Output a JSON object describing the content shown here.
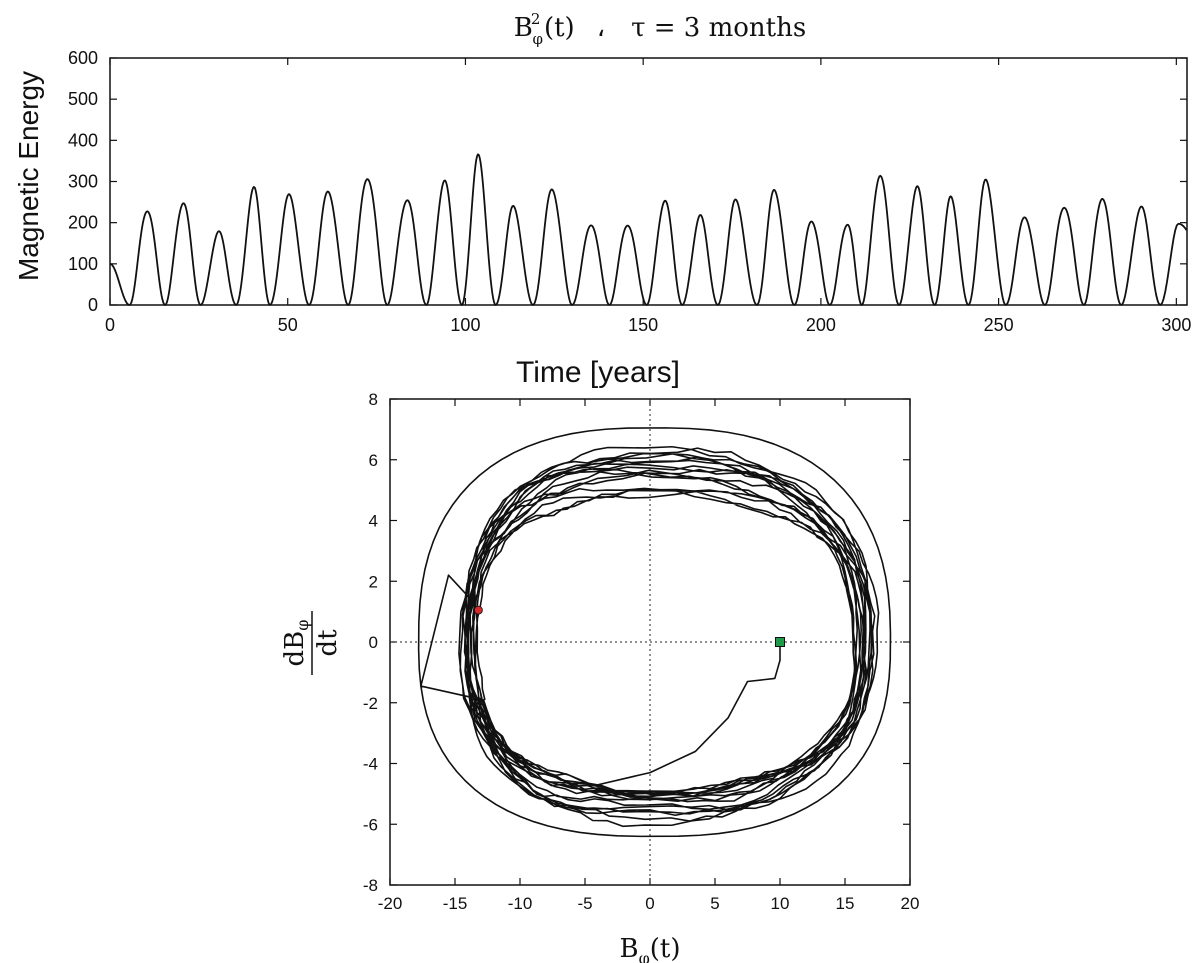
{
  "chart_data": [
    {
      "type": "line",
      "title": {
        "base": "B",
        "sub": "φ",
        "sup": "2",
        "arg": "(t)",
        "sep": "،",
        "tau": "τ = 3 months"
      },
      "xlabel": "Time [years]",
      "ylabel": "Magnetic Energy",
      "xlim": [
        0,
        303
      ],
      "ylim": [
        0,
        600
      ],
      "xticks": [
        0,
        50,
        100,
        150,
        200,
        250,
        300
      ],
      "yticks": [
        0,
        100,
        200,
        300,
        400,
        500,
        600
      ],
      "grid": false,
      "series": [
        {
          "color": "#111111",
          "start_value": 100,
          "peaks": [
            [
              10.5,
              237
            ],
            [
              20.5,
              252
            ],
            [
              30.5,
              176
            ],
            [
              40.5,
              276
            ],
            [
              50.5,
              262
            ],
            [
              61.5,
              278
            ],
            [
              72.5,
              318
            ],
            [
              83.5,
              262
            ],
            [
              94,
              300
            ],
            [
              103.5,
              353
            ],
            [
              113.5,
              233
            ],
            [
              124.5,
              280
            ],
            [
              135.5,
              200
            ],
            [
              145.5,
              200
            ],
            [
              156,
              254
            ],
            [
              166,
              212
            ],
            [
              176,
              247
            ],
            [
              187,
              276
            ],
            [
              197.5,
              208
            ],
            [
              207.5,
              203
            ],
            [
              216.5,
              318
            ],
            [
              227,
              282
            ],
            [
              236.5,
              254
            ],
            [
              246.5,
              298
            ],
            [
              257.5,
              216
            ],
            [
              268.5,
              246
            ],
            [
              279,
              264
            ],
            [
              290,
              236
            ],
            [
              300.5,
              190
            ]
          ],
          "zeros": [
            5.5,
            15.5,
            25.5,
            35.5,
            45,
            56,
            67,
            78,
            89,
            99,
            108.5,
            119,
            130,
            140.5,
            151,
            161,
            171,
            182,
            192.5,
            202.5,
            211.5,
            222,
            232,
            241.5,
            252,
            263,
            274,
            284.5,
            295.5
          ]
        }
      ]
    },
    {
      "type": "line",
      "title": "",
      "xlabel": {
        "base": "B",
        "sub": "φ",
        "arg": "(t)"
      },
      "ylabel": {
        "num_base": "dB",
        "num_sub": "φ",
        "den": "dt"
      },
      "xlim": [
        -20,
        20
      ],
      "ylim": [
        -8,
        8
      ],
      "xticks": [
        -20,
        -15,
        -10,
        -5,
        0,
        5,
        10,
        15,
        20
      ],
      "yticks": [
        -8,
        -6,
        -4,
        -2,
        0,
        2,
        4,
        6,
        8
      ],
      "zero_lines": true,
      "grid": false,
      "start_point": {
        "x": 10,
        "y": 0,
        "color": "#1f9a4a",
        "marker": "square"
      },
      "end_point": {
        "x": -13.2,
        "y": 1.05,
        "color": "#d42a2a",
        "marker": "circle"
      },
      "series": [
        {
          "color": "#111111",
          "start_transient": [
            [
              10,
              0
            ],
            [
              10,
              -0.6
            ],
            [
              9.6,
              -1.2
            ],
            [
              7.5,
              -1.3
            ],
            [
              6.0,
              -2.5
            ],
            [
              3.5,
              -3.6
            ],
            [
              0,
              -4.3
            ],
            [
              -4,
              -4.7
            ],
            [
              -8,
              -4.6
            ],
            [
              -11.5,
              -3.8
            ]
          ],
          "orbit_count": 16,
          "orbit_x_centers": [
            -0.5,
            0.3
          ],
          "orbit_x_radius_ranges": [
            [
              13.4,
              14.2
            ],
            [
              15.6,
              17.6
            ]
          ],
          "orbit_y_half_ranges": [
            [
              4.7,
              5.9
            ],
            [
              4.6,
              6.5
            ]
          ],
          "outer_loop_top": 7.05,
          "outer_loop_bottom": -6.4,
          "outer_loop_left": -17.8,
          "outer_loop_right": 18.0
        }
      ]
    }
  ]
}
